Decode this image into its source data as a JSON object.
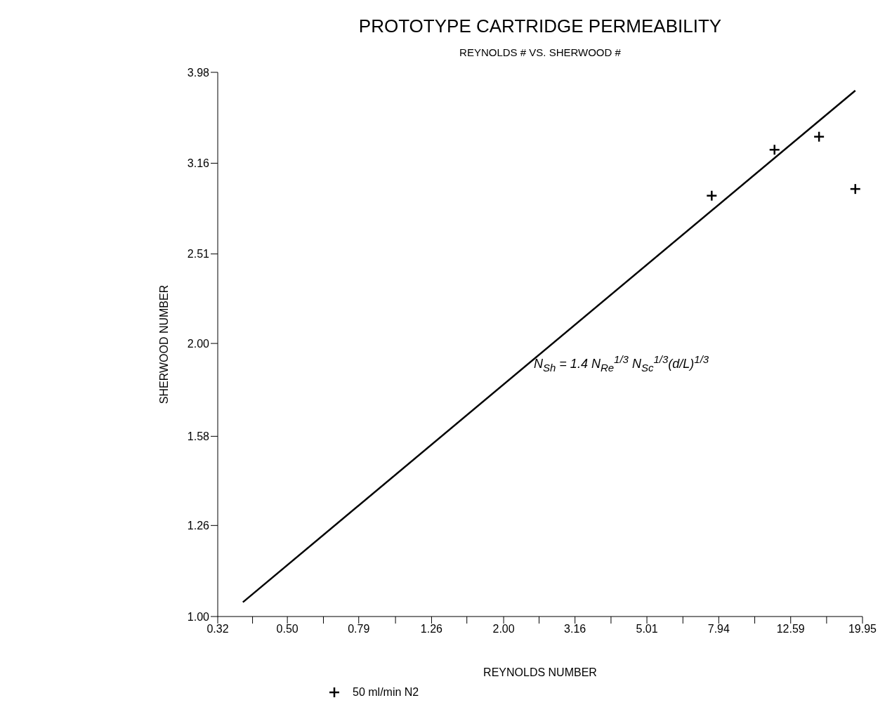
{
  "chart_data": {
    "type": "scatter",
    "title": "PROTOTYPE CARTRIDGE PERMEABILITY",
    "subtitle": "REYNOLDS # VS. SHERWOOD #",
    "xlabel": "REYNOLDS NUMBER",
    "ylabel": "SHERWOOD NUMBER",
    "log": "xy",
    "grid": false,
    "legend": "bottom",
    "marker": "cross",
    "xlim": [
      0.32,
      19.95
    ],
    "ylim": [
      1.0,
      3.98
    ],
    "xticks": [
      0.32,
      {
        "value": 0.4,
        "label": null
      },
      {
        "value": 0.5,
        "label": "0.50"
      },
      {
        "value": 0.63,
        "label": null
      },
      0.79,
      {
        "value": 1.0,
        "label": null
      },
      1.26,
      {
        "value": 1.58,
        "label": null
      },
      {
        "value": 2.0,
        "label": "2.00"
      },
      {
        "value": 2.51,
        "label": null
      },
      3.16,
      {
        "value": 3.98,
        "label": null
      },
      5.01,
      {
        "value": 6.31,
        "label": null
      },
      7.94,
      {
        "value": 10.0,
        "label": null
      },
      12.59,
      {
        "value": 15.85,
        "label": null
      },
      19.95
    ],
    "yticks": [
      {
        "value": 1.0,
        "label": "1.00"
      },
      1.26,
      1.58,
      {
        "value": 2.0,
        "label": "2.00"
      },
      2.51,
      3.16,
      3.98
    ],
    "annotations": [
      "N$_{Sh}$ = 1.4 N$_{Re}$$^{1/3}$ N$_{Sc}$$^{1/3}$(d/L)$^{1/3}$"
    ],
    "series": [
      {
        "name": "50 ml/min N2",
        "color": "#000000",
        "x": [
          7.59,
          11.35,
          15.1,
          19.05
        ],
        "values": [
          2.91,
          3.27,
          3.38,
          2.96
        ]
      },
      {
        "type": "line",
        "color": "#000000",
        "marker": "none",
        "line_style": "solid",
        "x": [
          0.376,
          19.05
        ],
        "values": [
          1.037,
          3.8
        ]
      }
    ]
  }
}
